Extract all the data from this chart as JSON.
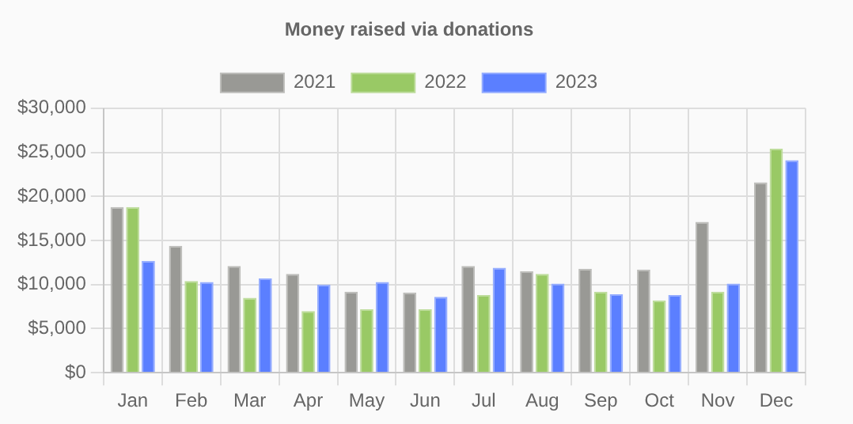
{
  "chart_data": {
    "type": "bar",
    "title": "Money raised via donations",
    "categories": [
      "Jan",
      "Feb",
      "Mar",
      "Apr",
      "May",
      "Jun",
      "Jul",
      "Aug",
      "Sep",
      "Oct",
      "Nov",
      "Dec"
    ],
    "series": [
      {
        "name": "2021",
        "color": "#999995",
        "values": [
          18800,
          14400,
          12100,
          11200,
          9200,
          9100,
          12100,
          11500,
          11800,
          11700,
          17100,
          21600
        ]
      },
      {
        "name": "2022",
        "color": "#99c965",
        "values": [
          18800,
          10400,
          8500,
          7000,
          7200,
          7200,
          8800,
          11200,
          9200,
          8200,
          9200,
          25400
        ]
      },
      {
        "name": "2023",
        "color": "#5b7fff",
        "values": [
          12700,
          10300,
          10700,
          10000,
          10300,
          8600,
          11900,
          10100,
          8900,
          8800,
          10100,
          24100
        ]
      }
    ],
    "ylim": [
      0,
      30000
    ],
    "yticks": [
      {
        "value": 0,
        "label": "$0"
      },
      {
        "value": 5000,
        "label": "$5,000"
      },
      {
        "value": 10000,
        "label": "$10,000"
      },
      {
        "value": 15000,
        "label": "$15,000"
      },
      {
        "value": 20000,
        "label": "$20,000"
      },
      {
        "value": 25000,
        "label": "$25,000"
      },
      {
        "value": 30000,
        "label": "$30,000"
      }
    ],
    "grid": true,
    "legend": "top"
  }
}
